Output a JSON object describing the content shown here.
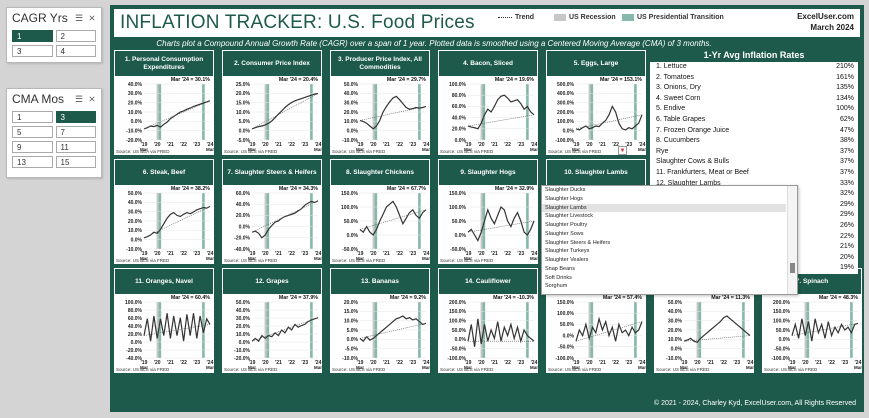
{
  "slicers": [
    {
      "title": "CAGR Yrs",
      "options": [
        "1",
        "2",
        "3",
        "4"
      ],
      "selected": "1"
    },
    {
      "title": "CMA Mos",
      "options": [
        "1",
        "3",
        "5",
        "7",
        "9",
        "11",
        "13",
        "15"
      ],
      "selected": "3"
    }
  ],
  "header": {
    "title": "INFLATION TRACKER: U.S. Food Prices",
    "legend_trend": "Trend",
    "legend_recession": "US Recession",
    "legend_transition": "US Presidential Transition",
    "site": "ExcelUser.com",
    "date": "March 2024"
  },
  "subtitle": "Charts plot a Compound Annual Growth Rate (CAGR) over a span of 1 year. Plotted data is smoothed using a Centered Moving Average (CMA) of 3 months.",
  "x_ticks": [
    "'19",
    "'20",
    "'21",
    "'22",
    "'23",
    "'24"
  ],
  "x_tick_mar": "Mar",
  "panels": [
    {
      "title": "1. Personal Consumption Expenditures",
      "callout": "Mar '24 = 30.1%",
      "yticks": [
        "40.0%",
        "30.0%",
        "20.0%",
        "10.0%",
        "0.0%",
        "-10.0%",
        "-20.0%"
      ],
      "source": "Source: US BEA via FRED",
      "points": [
        0.2,
        0.22,
        0.25,
        0.24,
        0.26,
        0.23,
        0.28,
        0.32,
        0.38,
        0.42,
        0.46,
        0.5,
        0.52,
        0.55,
        0.57,
        0.6,
        0.62,
        0.64,
        0.66,
        0.68,
        0.7
      ]
    },
    {
      "title": "2. Consumer Price Index",
      "callout": "Mar '24 = 20.4%",
      "yticks": [
        "25.0%",
        "20.0%",
        "15.0%",
        "10.0%",
        "5.0%",
        "0.0%",
        "-5.0%"
      ],
      "source": "Source: US BLS via FRED",
      "points": [
        0.2,
        0.22,
        0.24,
        0.25,
        0.27,
        0.3,
        0.34,
        0.4,
        0.46,
        0.52,
        0.58,
        0.63,
        0.67,
        0.7,
        0.72,
        0.74,
        0.76,
        0.78,
        0.8,
        0.82,
        0.83
      ]
    },
    {
      "title": "3. Producer Price Index, All Commodities",
      "callout": "Mar '24 = 29.7%",
      "yticks": [
        "50.0%",
        "40.0%",
        "30.0%",
        "20.0%",
        "10.0%",
        "0.0%",
        "-10.0%"
      ],
      "source": "Source: US BLS via FRED",
      "points": [
        0.35,
        0.33,
        0.3,
        0.25,
        0.2,
        0.25,
        0.35,
        0.5,
        0.6,
        0.68,
        0.75,
        0.78,
        0.72,
        0.65,
        0.58,
        0.55,
        0.56,
        0.58,
        0.57,
        0.58,
        0.6
      ]
    },
    {
      "title": "4. Bacon, Sliced",
      "callout": "Mar '24 = 19.6%",
      "yticks": [
        "100.0%",
        "80.0%",
        "60.0%",
        "40.0%",
        "20.0%",
        "0.0%"
      ],
      "source": "Source: US BLS via FRED",
      "points": [
        0.25,
        0.23,
        0.22,
        0.2,
        0.3,
        0.45,
        0.55,
        0.5,
        0.6,
        0.72,
        0.78,
        0.8,
        0.75,
        0.68,
        0.7,
        0.72,
        0.65,
        0.55,
        0.6,
        0.5,
        0.45
      ]
    },
    {
      "title": "5. Eggs, Large",
      "callout": "Mar '24 = 153.1%",
      "yticks": [
        "500.0%",
        "400.0%",
        "300.0%",
        "200.0%",
        "100.0%",
        "0.0%",
        "-100.0%"
      ],
      "source": "Source: US BLS via FRED",
      "points": [
        0.2,
        0.18,
        0.22,
        0.25,
        0.2,
        0.22,
        0.25,
        0.24,
        0.3,
        0.35,
        0.45,
        0.6,
        0.5,
        0.3,
        0.2,
        0.18,
        0.22,
        0.2,
        0.25,
        0.3,
        0.45
      ]
    },
    {
      "title": "6. Steak, Beef",
      "callout": "Mar '24 = 38.2%",
      "yticks": [
        "50.0%",
        "40.0%",
        "30.0%",
        "20.0%",
        "10.0%",
        "0.0%",
        "-10.0%"
      ],
      "source": "Source: US BLS via FRED",
      "points": [
        0.2,
        0.22,
        0.25,
        0.3,
        0.28,
        0.35,
        0.45,
        0.55,
        0.62,
        0.65,
        0.6,
        0.58,
        0.62,
        0.65,
        0.63,
        0.66,
        0.7,
        0.72,
        0.74,
        0.73,
        0.76
      ]
    },
    {
      "title": "7. Slaughter Steers & Heifers",
      "callout": "Mar '24 = 34.3%",
      "yticks": [
        "60.0%",
        "40.0%",
        "20.0%",
        "0.0%",
        "-20.0%",
        "-40.0%"
      ],
      "source": "Source: US BLS via FRED",
      "points": [
        0.3,
        0.32,
        0.28,
        0.2,
        0.25,
        0.35,
        0.42,
        0.48,
        0.5,
        0.55,
        0.58,
        0.6,
        0.62,
        0.64,
        0.68,
        0.72,
        0.78,
        0.82,
        0.85,
        0.83,
        0.86
      ]
    },
    {
      "title": "8. Slaughter Chickens",
      "callout": "Mar '24 = 67.7%",
      "yticks": [
        "150.0%",
        "100.0%",
        "50.0%",
        "0.0%",
        "-50.0%"
      ],
      "source": "Source: US BLS via FRED",
      "points": [
        0.35,
        0.3,
        0.4,
        0.3,
        0.25,
        0.35,
        0.5,
        0.62,
        0.75,
        0.8,
        0.85,
        0.75,
        0.6,
        0.45,
        0.55,
        0.65,
        0.7,
        0.6,
        0.55,
        0.65,
        0.7
      ]
    },
    {
      "title": "9. Slaughter Hogs",
      "callout": "Mar '24 = 32.9%",
      "yticks": [
        "150.0%",
        "100.0%",
        "50.0%",
        "0.0%",
        "-50.0%"
      ],
      "source": "Source: US BLS via FRED",
      "points": [
        0.3,
        0.35,
        0.25,
        0.15,
        0.3,
        0.5,
        0.7,
        0.55,
        0.45,
        0.6,
        0.75,
        0.7,
        0.5,
        0.4,
        0.55,
        0.65,
        0.5,
        0.3,
        0.25,
        0.35,
        0.5
      ]
    },
    {
      "title": "10. Slaughter Lambs",
      "callout": "",
      "yticks": [],
      "source": "",
      "points": []
    },
    {
      "title": "11. Oranges, Navel",
      "callout": "Mar '24 = 60.4%",
      "yticks": [
        "100.0%",
        "80.0%",
        "60.0%",
        "40.0%",
        "20.0%",
        "0.0%",
        "-20.0%",
        "-40.0%"
      ],
      "source": "Source: US BLS via FRED",
      "points": [
        0.4,
        0.7,
        0.3,
        0.75,
        0.35,
        0.7,
        0.4,
        0.8,
        0.35,
        0.75,
        0.4,
        0.72,
        0.3,
        0.78,
        0.4,
        0.8,
        0.35,
        0.75,
        0.45,
        0.7,
        0.6
      ]
    },
    {
      "title": "12. Grapes",
      "callout": "Mar '24 = 37.9%",
      "yticks": [
        "50.0%",
        "40.0%",
        "30.0%",
        "20.0%",
        "10.0%",
        "0.0%",
        "-10.0%",
        "-20.0%"
      ],
      "source": "Source: US BLS via FRED",
      "points": [
        0.3,
        0.35,
        0.3,
        0.4,
        0.35,
        0.4,
        0.38,
        0.45,
        0.4,
        0.5,
        0.45,
        0.55,
        0.5,
        0.6,
        0.55,
        0.58,
        0.6,
        0.65,
        0.68,
        0.7,
        0.72
      ]
    },
    {
      "title": "13. Bananas",
      "callout": "Mar '24 = 9.2%",
      "yticks": [
        "20.0%",
        "15.0%",
        "10.0%",
        "5.0%",
        "0.0%",
        "-5.0%",
        "-10.0%"
      ],
      "source": "Source: US BLS via FRED",
      "points": [
        0.35,
        0.3,
        0.38,
        0.32,
        0.35,
        0.4,
        0.45,
        0.5,
        0.55,
        0.6,
        0.65,
        0.7,
        0.72,
        0.75,
        0.7,
        0.72,
        0.68,
        0.7,
        0.65,
        0.6,
        0.62
      ]
    },
    {
      "title": "14. Cauliflower",
      "callout": "Mar '24 = -10.3%",
      "yticks": [
        "200.0%",
        "150.0%",
        "100.0%",
        "50.0%",
        "0.0%",
        "-50.0%",
        "-100.0%"
      ],
      "source": "Source: US BLS via FRED",
      "points": [
        0.3,
        0.6,
        0.2,
        0.7,
        0.25,
        0.6,
        0.3,
        0.5,
        0.35,
        0.65,
        0.3,
        0.55,
        0.4,
        0.6,
        0.35,
        0.55,
        0.3,
        0.5,
        0.4,
        0.35,
        0.3
      ]
    },
    {
      "title": "",
      "callout": "Mar '24 = 57.4%",
      "yticks": [
        "150.0%",
        "100.0%",
        "50.0%",
        "0.0%",
        "-50.0%",
        "-100.0%"
      ],
      "source": "Source: US BLS via FRED",
      "points": [
        0.3,
        0.5,
        0.4,
        0.6,
        0.35,
        0.55,
        0.45,
        0.7,
        0.5,
        0.65,
        0.4,
        0.55,
        0.3,
        0.6,
        0.45,
        0.5,
        0.4,
        0.55,
        0.45,
        0.5,
        0.65
      ]
    },
    {
      "title": "",
      "callout": "Mar '24 = 11.3%",
      "yticks": [
        "50.0%",
        "40.0%",
        "30.0%",
        "20.0%",
        "10.0%",
        "0.0%",
        "-10.0%"
      ],
      "source": "Source: US BLS via FRED",
      "points": [
        0.3,
        0.32,
        0.35,
        0.3,
        0.28,
        0.35,
        0.4,
        0.45,
        0.5,
        0.55,
        0.6,
        0.65,
        0.72,
        0.75,
        0.7,
        0.65,
        0.6,
        0.55,
        0.5,
        0.45,
        0.4
      ]
    },
    {
      "title": "7. Spinach",
      "callout": "Mar '24 = 48.3%",
      "yticks": [
        "200.0%",
        "150.0%",
        "100.0%",
        "50.0%",
        "0.0%",
        "-50.0%",
        "-100.0%"
      ],
      "source": "Source: US BLS via FRED",
      "points": [
        0.4,
        0.6,
        0.35,
        0.7,
        0.4,
        0.65,
        0.3,
        0.7,
        0.45,
        0.6,
        0.35,
        0.65,
        0.4,
        0.55,
        0.45,
        0.6,
        0.5,
        0.55,
        0.45,
        0.6,
        0.62
      ]
    }
  ],
  "rates": {
    "title": "1-Yr Avg Inflation Rates",
    "rows": [
      {
        "label": "1. Lettuce",
        "value": "210%"
      },
      {
        "label": "2. Tomatoes",
        "value": "161%"
      },
      {
        "label": "3. Onions, Dry",
        "value": "135%"
      },
      {
        "label": "4. Sweet Corn",
        "value": "134%"
      },
      {
        "label": "5. Endive",
        "value": "100%"
      },
      {
        "label": "6. Table Grapes",
        "value": "62%"
      },
      {
        "label": "7. Frozen Orange Juice",
        "value": "47%"
      },
      {
        "label": "8. Cucumbers",
        "value": "38%"
      },
      {
        "label": "Rye",
        "value": "37%"
      },
      {
        "label": "Slaughter Cows & Bulls",
        "value": "37%"
      },
      {
        "label": "11. Frankfurters, Meat or Beef",
        "value": "37%"
      },
      {
        "label": "12. Slaughter Lambs",
        "value": "33%"
      },
      {
        "label": "",
        "value": "32%"
      },
      {
        "label": "",
        "value": "29%"
      },
      {
        "label": "",
        "value": "29%"
      },
      {
        "label": "",
        "value": "26%"
      },
      {
        "label": "",
        "value": "22%"
      },
      {
        "label": "",
        "value": "21%"
      },
      {
        "label": "",
        "value": "20%"
      },
      {
        "label": "",
        "value": "19%"
      }
    ]
  },
  "dropdown_cell": "10. Slaughter Lambs",
  "dropdown": {
    "items": [
      "Slaughter Ducks",
      "Slaughter Hogs",
      "Slaughter Lambs",
      "Slaughter Livestock",
      "Slaughter Poultry",
      "Slaughter Sows",
      "Slaughter Steers & Heifers",
      "Slaughter Turkeys",
      "Slaughter Vealers",
      "Snap Beans",
      "Soft Drinks",
      "Sorghum"
    ],
    "highlighted": "Slaughter Lambs"
  },
  "copyright": "© 2021 - 2024, Charley Kyd, ExcelUser.com, All Rights Reserved"
}
